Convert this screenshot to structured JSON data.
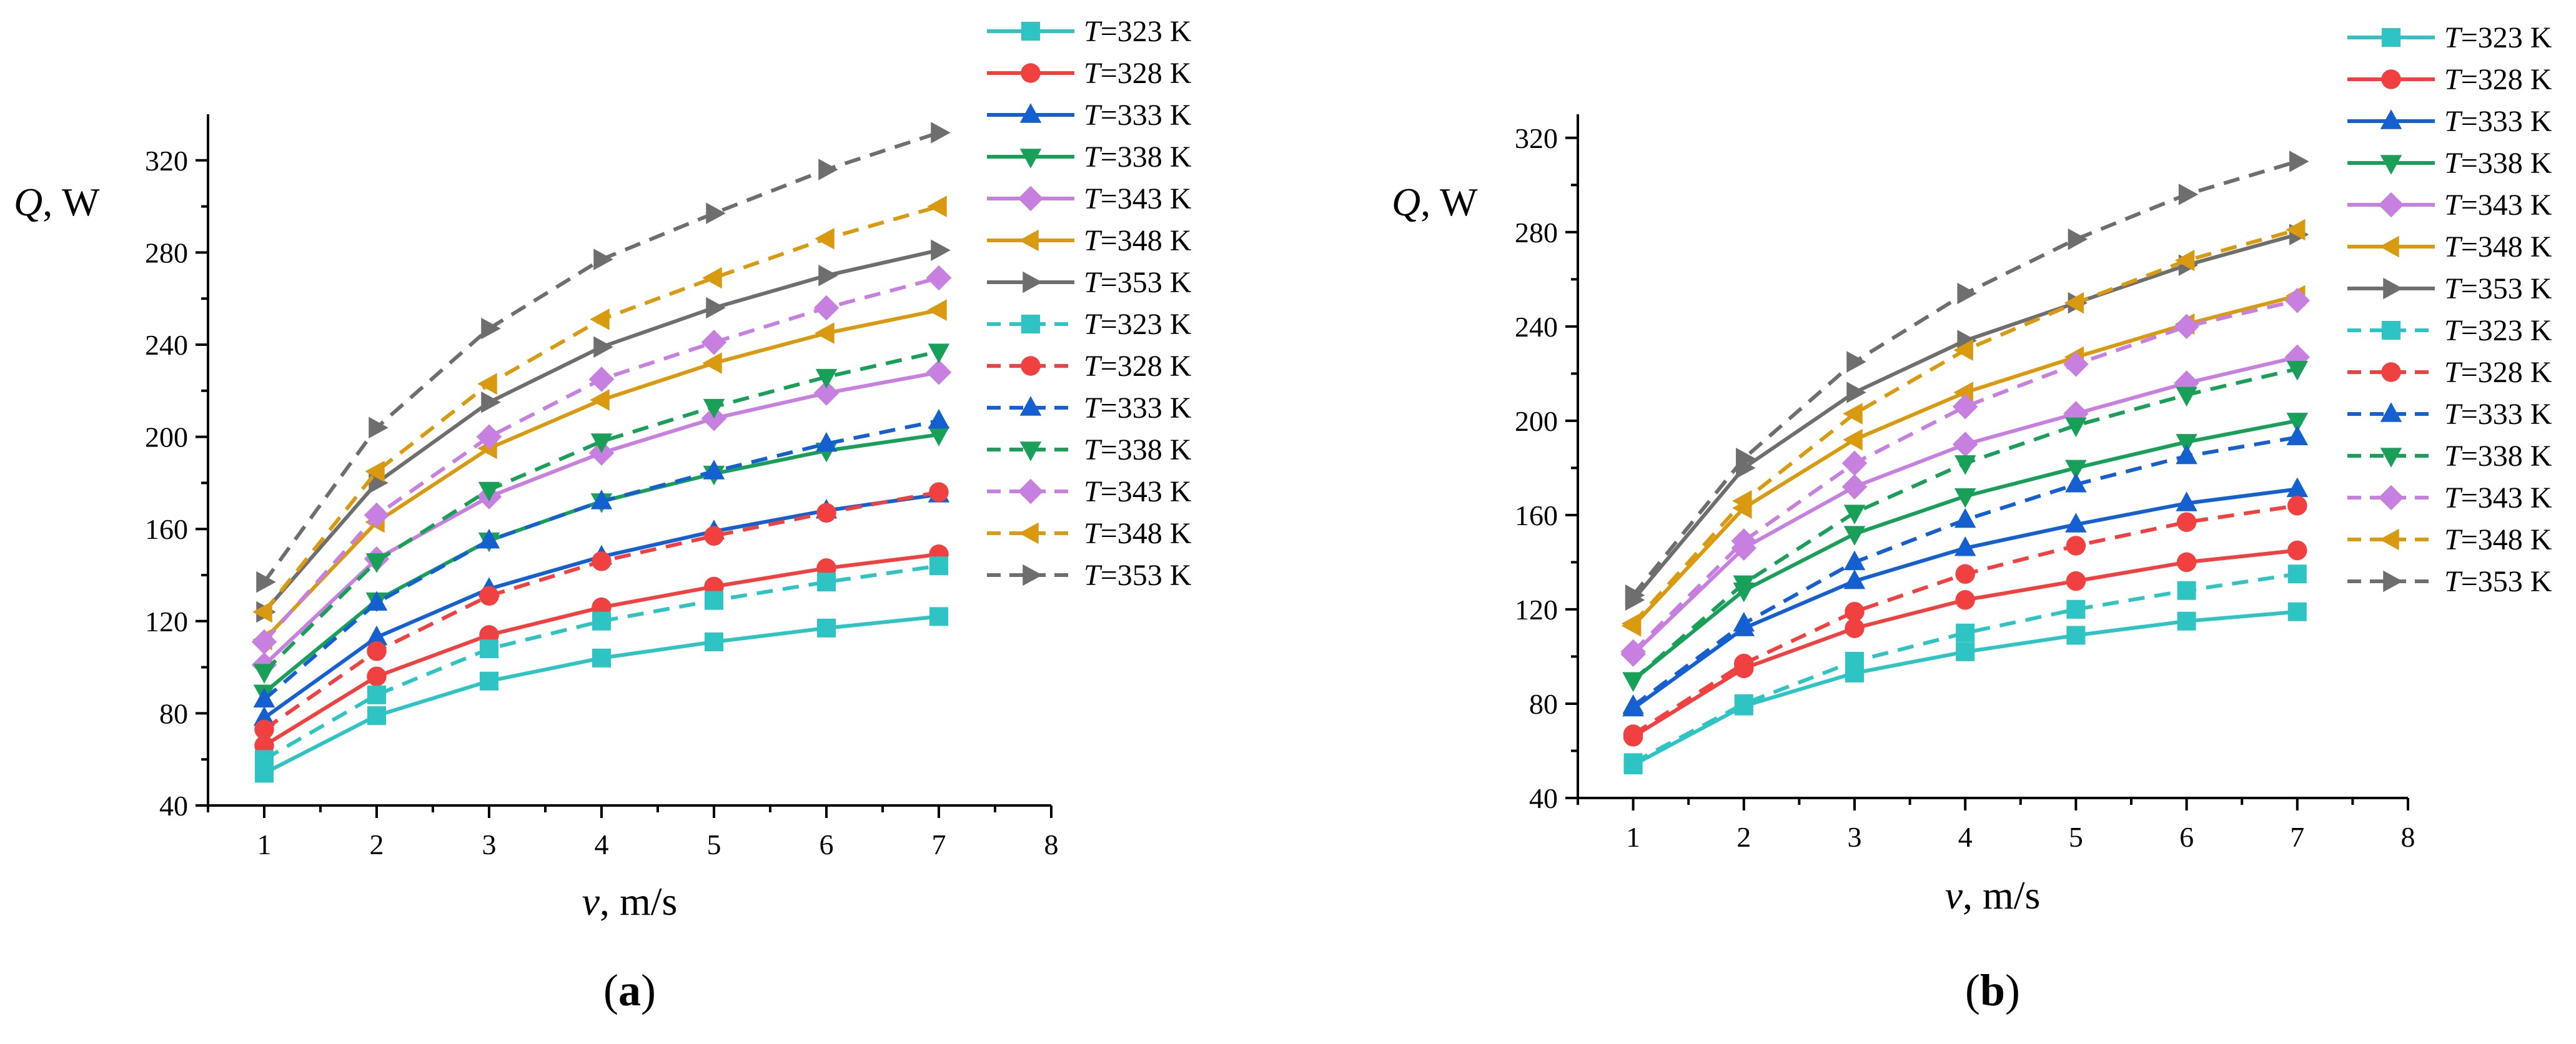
{
  "figure_labels": [
    "(a)",
    "(b)"
  ],
  "panel_label_parts": [
    {
      "open": "(",
      "letter": "a",
      "close": ")"
    },
    {
      "open": "(",
      "letter": "b",
      "close": ")"
    }
  ],
  "y_axis_title": {
    "symbol": "Q",
    "rest": ", W"
  },
  "x_axis_title": {
    "symbol": "v",
    "rest": ", m/s"
  },
  "legend_entries": [
    "T=323 K",
    "T=328 K",
    "T=333 K",
    "T=338 K",
    "T=343 K",
    "T=348 K",
    "T=353 K",
    "T=323 K",
    "T=328 K",
    "T=333 K",
    "T=338 K",
    "T=343 K",
    "T=348 K",
    "T=353 K"
  ],
  "colors": {
    "323": "#2ec4c4",
    "328": "#f04040",
    "333": "#1560d0",
    "338": "#18a058",
    "343": "#c77fe0",
    "348": "#d99a10",
    "353": "#6e6e6e"
  },
  "chart_data": [
    {
      "type": "line",
      "label": "(a)",
      "xlabel": "v, m/s",
      "ylabel": "Q, W",
      "xlim": [
        0.5,
        8
      ],
      "ylim": [
        40,
        340
      ],
      "xticks": [
        1,
        2,
        3,
        4,
        5,
        6,
        7,
        8
      ],
      "yticks": [
        40,
        80,
        120,
        160,
        200,
        240,
        280,
        320
      ],
      "x": [
        1,
        2,
        3,
        4,
        5,
        6,
        7
      ],
      "series": [
        {
          "name": "T=323 K",
          "temp": "323",
          "style": "solid",
          "marker": "square",
          "values": [
            54,
            79,
            94,
            104,
            111,
            117,
            122
          ]
        },
        {
          "name": "T=328 K",
          "temp": "328",
          "style": "solid",
          "marker": "circle",
          "values": [
            66,
            96,
            114,
            126,
            135,
            143,
            149
          ]
        },
        {
          "name": "T=333 K",
          "temp": "333",
          "style": "solid",
          "marker": "triangle-up",
          "values": [
            78,
            113,
            134,
            148,
            159,
            168,
            175
          ]
        },
        {
          "name": "T=338 K",
          "temp": "338",
          "style": "solid",
          "marker": "triangle-down",
          "values": [
            89,
            129,
            155,
            172,
            184,
            194,
            201
          ]
        },
        {
          "name": "T=343 K",
          "temp": "343",
          "style": "solid",
          "marker": "diamond",
          "values": [
            101,
            147,
            174,
            193,
            208,
            219,
            228
          ]
        },
        {
          "name": "T=348 K",
          "temp": "348",
          "style": "solid",
          "marker": "triangle-left",
          "values": [
            112,
            163,
            195,
            216,
            232,
            245,
            255
          ]
        },
        {
          "name": "T=353 K",
          "temp": "353",
          "style": "solid",
          "marker": "triangle-right",
          "values": [
            124,
            180,
            215,
            239,
            256,
            270,
            281
          ]
        },
        {
          "name": "T=323 K",
          "temp": "323",
          "style": "dashed",
          "marker": "square",
          "values": [
            60,
            88,
            108,
            120,
            129,
            137,
            144
          ]
        },
        {
          "name": "T=328 K",
          "temp": "328",
          "style": "dashed",
          "marker": "circle",
          "values": [
            73,
            107,
            131,
            146,
            157,
            167,
            176
          ]
        },
        {
          "name": "T=333 K",
          "temp": "333",
          "style": "dashed",
          "marker": "triangle-up",
          "values": [
            86,
            128,
            155,
            172,
            185,
            197,
            207
          ]
        },
        {
          "name": "T=338 K",
          "temp": "338",
          "style": "dashed",
          "marker": "triangle-down",
          "values": [
            98,
            146,
            177,
            198,
            213,
            226,
            237
          ]
        },
        {
          "name": "T=343 K",
          "temp": "343",
          "style": "dashed",
          "marker": "diamond",
          "values": [
            111,
            166,
            200,
            225,
            241,
            256,
            269
          ]
        },
        {
          "name": "T=348 K",
          "temp": "348",
          "style": "dashed",
          "marker": "triangle-left",
          "values": [
            124,
            185,
            223,
            251,
            269,
            286,
            300
          ]
        },
        {
          "name": "T=353 K",
          "temp": "353",
          "style": "dashed",
          "marker": "triangle-right",
          "values": [
            137,
            204,
            247,
            277,
            297,
            316,
            332
          ]
        }
      ],
      "legend_position": "right"
    },
    {
      "type": "line",
      "label": "(b)",
      "xlabel": "v, m/s",
      "ylabel": "Q, W",
      "xlim": [
        0.5,
        8
      ],
      "ylim": [
        40,
        330
      ],
      "xticks": [
        1,
        2,
        3,
        4,
        5,
        6,
        7,
        8
      ],
      "yticks": [
        40,
        80,
        120,
        160,
        200,
        240,
        280,
        320
      ],
      "x": [
        1,
        2,
        3,
        4,
        5,
        6,
        7
      ],
      "series": [
        {
          "name": "T=323 K",
          "temp": "323",
          "style": "solid",
          "marker": "square",
          "values": [
            54,
            79,
            93,
            102,
            109,
            115,
            119
          ]
        },
        {
          "name": "T=328 K",
          "temp": "328",
          "style": "solid",
          "marker": "circle",
          "values": [
            66,
            95,
            112,
            124,
            132,
            140,
            145
          ]
        },
        {
          "name": "T=333 K",
          "temp": "333",
          "style": "solid",
          "marker": "triangle-up",
          "values": [
            78,
            112,
            132,
            146,
            156,
            165,
            171
          ]
        },
        {
          "name": "T=338 K",
          "temp": "338",
          "style": "solid",
          "marker": "triangle-down",
          "values": [
            90,
            128,
            152,
            168,
            180,
            191,
            200
          ]
        },
        {
          "name": "T=343 K",
          "temp": "343",
          "style": "solid",
          "marker": "diamond",
          "values": [
            101,
            146,
            172,
            190,
            203,
            216,
            227
          ]
        },
        {
          "name": "T=348 K",
          "temp": "348",
          "style": "solid",
          "marker": "triangle-left",
          "values": [
            113,
            163,
            192,
            212,
            227,
            241,
            253
          ]
        },
        {
          "name": "T=353 K",
          "temp": "353",
          "style": "solid",
          "marker": "triangle-right",
          "values": [
            124,
            180,
            212,
            234,
            250,
            266,
            279
          ]
        },
        {
          "name": "T=323 K",
          "temp": "323",
          "style": "dashed",
          "marker": "square",
          "values": [
            55,
            80,
            98,
            110,
            120,
            128,
            135
          ]
        },
        {
          "name": "T=328 K",
          "temp": "328",
          "style": "dashed",
          "marker": "circle",
          "values": [
            67,
            97,
            119,
            135,
            147,
            157,
            164
          ]
        },
        {
          "name": "T=333 K",
          "temp": "333",
          "style": "dashed",
          "marker": "triangle-up",
          "values": [
            79,
            114,
            140,
            158,
            173,
            185,
            193
          ]
        },
        {
          "name": "T=338 K",
          "temp": "338",
          "style": "dashed",
          "marker": "triangle-down",
          "values": [
            90,
            131,
            161,
            182,
            198,
            211,
            222
          ]
        },
        {
          "name": "T=343 K",
          "temp": "343",
          "style": "dashed",
          "marker": "diamond",
          "values": [
            102,
            149,
            182,
            206,
            224,
            240,
            251
          ]
        },
        {
          "name": "T=348 K",
          "temp": "348",
          "style": "dashed",
          "marker": "triangle-left",
          "values": [
            114,
            166,
            203,
            230,
            250,
            268,
            281
          ]
        },
        {
          "name": "T=353 K",
          "temp": "353",
          "style": "dashed",
          "marker": "triangle-right",
          "values": [
            126,
            184,
            225,
            254,
            277,
            296,
            310
          ]
        }
      ],
      "legend_position": "right"
    }
  ]
}
